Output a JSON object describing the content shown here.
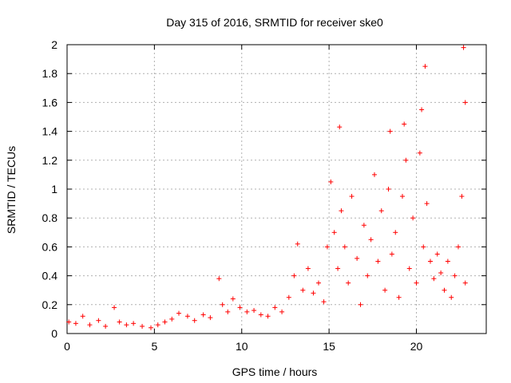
{
  "chart_data": {
    "type": "scatter",
    "title": "Day 315 of 2016, SRMTID for receiver ske0",
    "xlabel": "GPS time / hours",
    "ylabel": "SRMTID / TECUs",
    "xlim": [
      0,
      24
    ],
    "ylim": [
      0,
      2
    ],
    "xticks": [
      0,
      5,
      10,
      15,
      20
    ],
    "yticks": [
      0,
      0.2,
      0.4,
      0.6,
      0.8,
      1,
      1.2,
      1.4,
      1.6,
      1.8,
      2
    ],
    "x_tick_labels": [
      "0",
      "5",
      "10",
      "15",
      "20"
    ],
    "y_tick_labels": [
      "0",
      "0.2",
      "0.4",
      "0.6",
      "0.8",
      "1",
      "1.2",
      "1.4",
      "1.6",
      "1.8",
      "2"
    ],
    "grid": true,
    "marker": "plus",
    "color": "#ff0000",
    "series": [
      {
        "name": "SRMTID",
        "x": [
          0.1,
          0.5,
          0.9,
          1.3,
          1.8,
          2.2,
          2.7,
          3.0,
          3.4,
          3.8,
          4.3,
          4.8,
          5.2,
          5.6,
          6.0,
          6.4,
          6.9,
          7.3,
          7.8,
          8.2,
          8.7,
          8.9,
          9.2,
          9.5,
          9.9,
          10.3,
          10.7,
          11.1,
          11.5,
          11.9,
          12.3,
          12.7,
          13.0,
          13.2,
          13.5,
          13.8,
          14.1,
          14.4,
          14.7,
          14.9,
          15.1,
          15.3,
          15.5,
          15.7,
          15.9,
          16.1,
          16.3,
          16.6,
          16.8,
          17.0,
          17.2,
          17.4,
          17.6,
          17.8,
          18.0,
          18.2,
          18.4,
          18.6,
          18.8,
          19.0,
          19.2,
          19.4,
          19.6,
          19.8,
          20.0,
          20.2,
          20.4,
          20.6,
          20.8,
          21.0,
          21.2,
          21.4,
          21.6,
          21.8,
          22.0,
          22.2,
          22.4,
          22.6,
          22.8,
          15.6,
          18.5,
          19.3,
          20.3,
          20.5,
          22.7,
          22.8
        ],
        "y": [
          0.08,
          0.07,
          0.12,
          0.06,
          0.09,
          0.05,
          0.18,
          0.08,
          0.06,
          0.07,
          0.05,
          0.04,
          0.06,
          0.08,
          0.1,
          0.14,
          0.12,
          0.09,
          0.13,
          0.11,
          0.38,
          0.2,
          0.15,
          0.24,
          0.18,
          0.15,
          0.16,
          0.13,
          0.12,
          0.18,
          0.15,
          0.25,
          0.4,
          0.62,
          0.3,
          0.45,
          0.28,
          0.35,
          0.22,
          0.6,
          1.05,
          0.7,
          0.45,
          0.85,
          0.6,
          0.35,
          0.95,
          0.52,
          0.2,
          0.75,
          0.4,
          0.65,
          1.1,
          0.5,
          0.85,
          0.3,
          1.0,
          0.55,
          0.7,
          0.25,
          0.95,
          1.2,
          0.45,
          0.8,
          0.35,
          1.25,
          0.6,
          0.9,
          0.5,
          0.38,
          0.55,
          0.42,
          0.3,
          0.5,
          0.25,
          0.4,
          0.6,
          0.95,
          0.35,
          1.43,
          1.4,
          1.45,
          1.55,
          1.85,
          1.98,
          1.6
        ]
      }
    ]
  }
}
